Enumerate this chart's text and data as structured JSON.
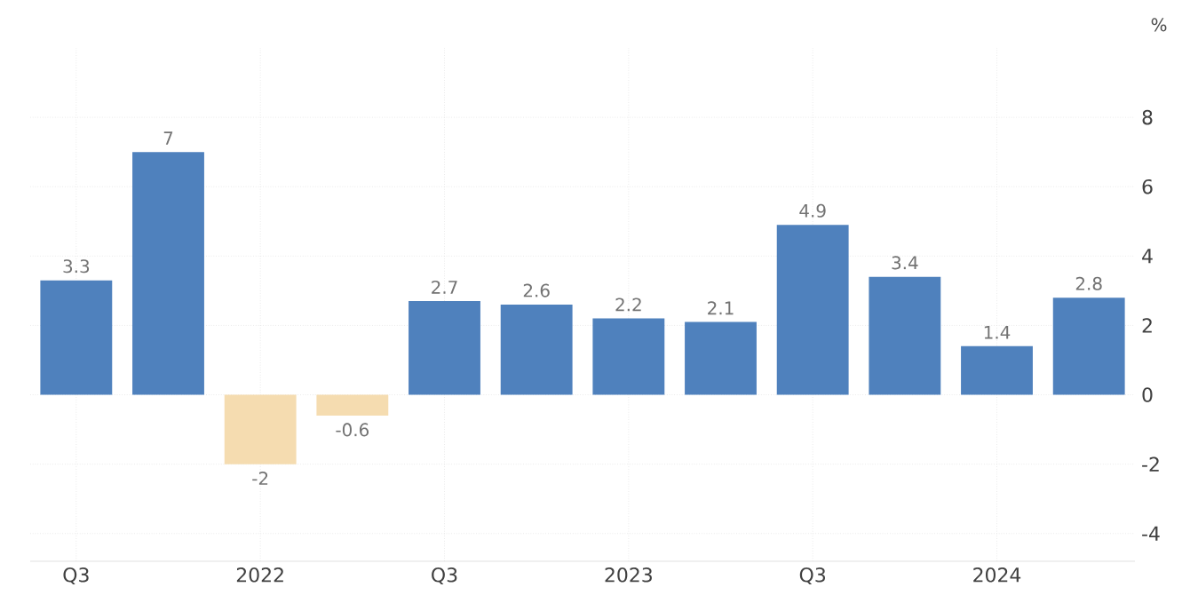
{
  "chart_data": {
    "type": "bar",
    "ylabel": "%",
    "categories": [
      "Q3",
      null,
      "2022",
      null,
      "Q3",
      null,
      "2023",
      null,
      "Q3",
      null,
      "2024",
      null
    ],
    "values": [
      3.3,
      7,
      -2,
      -0.6,
      2.7,
      2.6,
      2.2,
      2.1,
      4.9,
      3.4,
      1.4,
      2.8
    ],
    "colors": [
      "#4f81bd",
      "#4f81bd",
      "#f5dcb0",
      "#f5dcb0",
      "#4f81bd",
      "#4f81bd",
      "#4f81bd",
      "#4f81bd",
      "#4f81bd",
      "#4f81bd",
      "#4f81bd",
      "#4f81bd"
    ],
    "ylim": [
      -4.8,
      10
    ],
    "yticks": [
      -4,
      -2,
      0,
      2,
      4,
      6,
      8
    ],
    "grid": true,
    "data_labels": true
  }
}
